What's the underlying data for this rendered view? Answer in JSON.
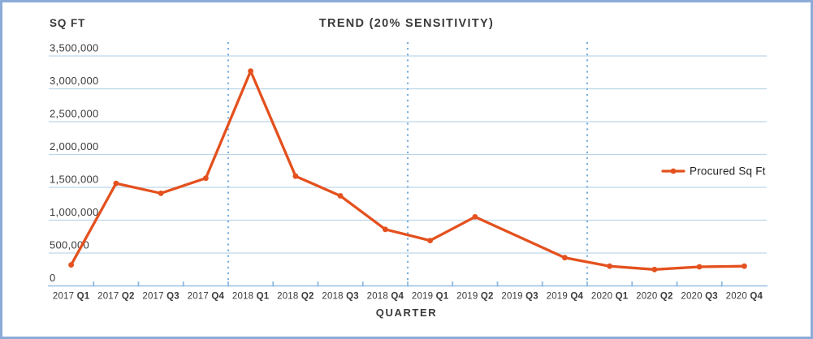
{
  "colors": {
    "series_orange": "#E4511E",
    "gridline": "#BCD7EA",
    "axis_line": "#A6C8E4",
    "tick": "#8FB9DF",
    "year_separator": "#79AEDC",
    "border": "#8BABD8",
    "text_dark": "#3B3B3B",
    "background": "#FFFFFF"
  },
  "chart_data": {
    "type": "line",
    "title": "TREND (20% SENSITIVITY)",
    "xlabel": "QUARTER",
    "ylabel": "SQ FT",
    "categories": [
      "2017 Q1",
      "2017 Q2",
      "2017 Q3",
      "2017 Q4",
      "2018 Q1",
      "2018 Q2",
      "2018 Q3",
      "2018 Q4",
      "2019 Q1",
      "2019 Q2",
      "2019 Q3",
      "2019 Q4",
      "2020 Q1",
      "2020 Q2",
      "2020 Q3",
      "2020 Q4"
    ],
    "series": [
      {
        "name": "Procured Sq Ft",
        "color": "#E4511E",
        "values": [
          320000,
          1560000,
          1410000,
          1640000,
          3270000,
          1670000,
          1370000,
          860000,
          690000,
          1050000,
          null,
          430000,
          300000,
          250000,
          290000,
          300000
        ]
      }
    ],
    "ylim": [
      0,
      3500000
    ],
    "y_ticks": [
      {
        "value": 3500000,
        "label": "3,500,000"
      },
      {
        "value": 3000000,
        "label": "3,000,000"
      },
      {
        "value": 2500000,
        "label": "2,500,000"
      },
      {
        "value": 2000000,
        "label": "2,000,000"
      },
      {
        "value": 1500000,
        "label": "1,500,000"
      },
      {
        "value": 1000000,
        "label": "1,000,000"
      },
      {
        "value": 500000,
        "label": "500,000"
      },
      {
        "value": 0,
        "label": "0"
      }
    ],
    "year_separators": [
      "2018 Q1",
      "2019 Q1",
      "2020 Q1"
    ],
    "grid": "horizontal-only",
    "legend_position": "right-middle"
  }
}
